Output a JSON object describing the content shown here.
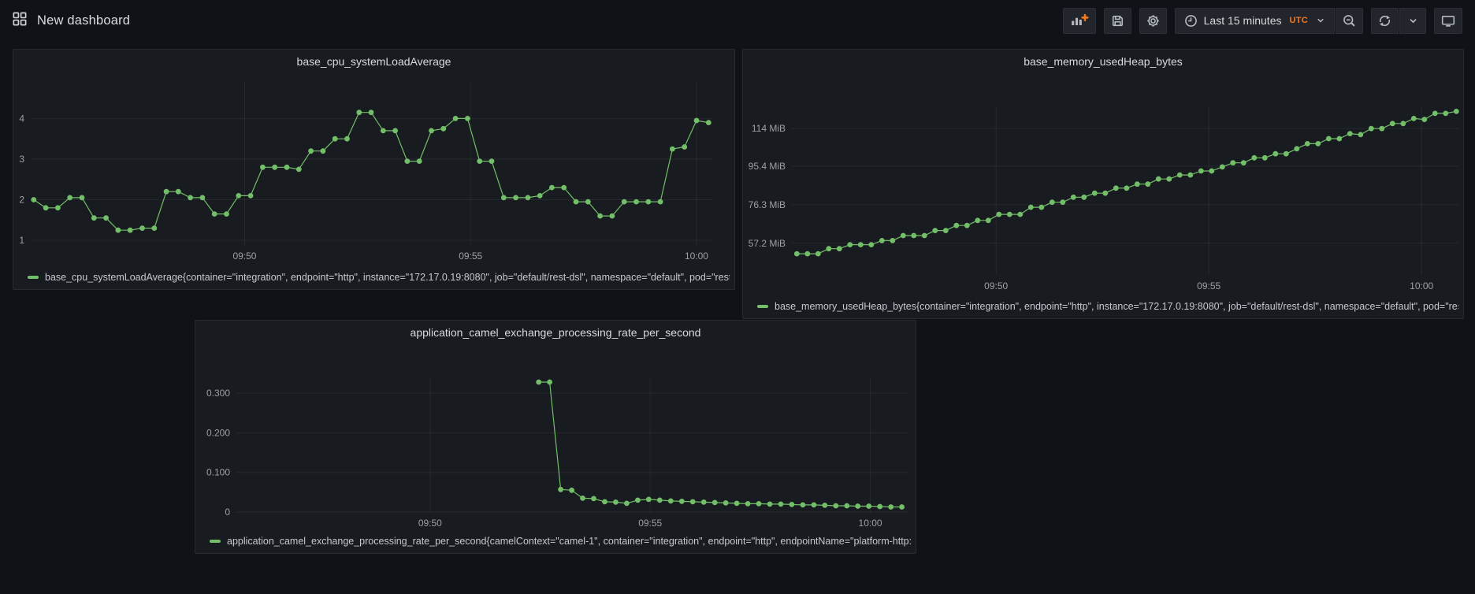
{
  "header": {
    "title": "New dashboard",
    "title_icon": "apps-grid-icon",
    "toolbar": {
      "add_panel": {
        "icon": "bar-chart-plus-icon"
      },
      "save": {
        "icon": "save-icon"
      },
      "settings": {
        "icon": "gear-icon"
      },
      "time_picker": {
        "icon": "clock-icon",
        "label": "Last 15 minutes",
        "timezone": "UTC",
        "caret_icon": "chevron-down-icon"
      },
      "zoom_out": {
        "icon": "magnifier-minus-icon"
      },
      "refresh": {
        "icon": "refresh-icon"
      },
      "refresh_interval": {
        "icon": "chevron-down-icon"
      },
      "cycle_view": {
        "icon": "monitor-icon"
      }
    }
  },
  "colors": {
    "series_green": "#73BF69",
    "accent_orange": "#F5791D",
    "panel_bg": "#181B1F",
    "page_bg": "#111217"
  },
  "chart_data": [
    {
      "type": "line",
      "title": "base_cpu_systemLoadAverage",
      "ylim": [
        0.885,
        4.92
      ],
      "y_ticks": [
        {
          "value": 1,
          "label": "1"
        },
        {
          "value": 2,
          "label": "2"
        },
        {
          "value": 3,
          "label": "3"
        },
        {
          "value": 4,
          "label": "4"
        }
      ],
      "time_domain": [
        "09:45:16",
        "10:00:22"
      ],
      "x_ticks": [
        {
          "time": "09:50:00",
          "label": "09:50"
        },
        {
          "time": "09:55:00",
          "label": "09:55"
        },
        {
          "time": "10:00:00",
          "label": "10:00"
        }
      ],
      "grid": true,
      "legend_position": "bottom",
      "series": [
        {
          "name": "base_cpu_systemLoadAverage{container=\"integration\", endpoint=\"http\", instance=\"172.17.0.19:8080\", job=\"default/rest-dsl\", namespace=\"default\", pod=\"rest-d",
          "color": "#73BF69",
          "start": "09:45:20",
          "interval_s": 16,
          "values": [
            2.0,
            1.8,
            1.8,
            2.05,
            2.05,
            1.55,
            1.55,
            1.25,
            1.25,
            1.3,
            1.3,
            2.2,
            2.2,
            2.05,
            2.05,
            1.65,
            1.65,
            2.1,
            2.1,
            2.8,
            2.8,
            2.8,
            2.75,
            3.2,
            3.2,
            3.5,
            3.5,
            4.15,
            4.15,
            3.7,
            3.7,
            2.95,
            2.95,
            3.7,
            3.75,
            4.0,
            4.0,
            2.95,
            2.95,
            2.05,
            2.05,
            2.05,
            2.1,
            2.3,
            2.3,
            1.95,
            1.95,
            1.6,
            1.6,
            1.95,
            1.95,
            1.95,
            1.95,
            3.25,
            3.3,
            3.95,
            3.9
          ]
        }
      ]
    },
    {
      "type": "line",
      "title": "base_memory_usedHeap_bytes",
      "unit": "MiB",
      "ylim": [
        41.5,
        124.6
      ],
      "y_ticks": [
        {
          "value": 57.2,
          "label": "57.2 MiB"
        },
        {
          "value": 76.3,
          "label": "76.3 MiB"
        },
        {
          "value": 95.4,
          "label": "95.4 MiB"
        },
        {
          "value": 114,
          "label": "114 MiB"
        }
      ],
      "time_domain": [
        "09:45:12",
        "10:00:52"
      ],
      "x_ticks": [
        {
          "time": "09:50:00",
          "label": "09:50"
        },
        {
          "time": "09:55:00",
          "label": "09:55"
        },
        {
          "time": "10:00:00",
          "label": "10:00"
        }
      ],
      "grid": true,
      "legend_position": "bottom",
      "series": [
        {
          "name": "base_memory_usedHeap_bytes{container=\"integration\", endpoint=\"http\", instance=\"172.17.0.19:8080\", job=\"default/rest-dsl\", namespace=\"default\", pod=\"rest-",
          "color": "#73BF69",
          "start": "09:45:19",
          "interval_s": 15,
          "values": [
            52,
            52,
            52,
            54.5,
            54.5,
            56.5,
            56.5,
            56.5,
            58.5,
            58.5,
            61,
            61,
            61,
            63.5,
            63.5,
            66,
            66,
            68.5,
            68.5,
            71.5,
            71.5,
            71.5,
            75,
            75,
            77.5,
            77.5,
            80,
            80,
            82,
            82,
            84.5,
            84.5,
            86.5,
            86.5,
            89,
            89,
            91,
            91,
            93,
            93,
            95,
            97,
            97,
            99.5,
            99.5,
            101.5,
            101.5,
            104,
            106.5,
            106.5,
            109,
            109,
            111.5,
            111,
            114,
            114,
            116.5,
            116.5,
            119,
            118.5,
            121.5,
            121.5,
            122.5
          ]
        }
      ]
    },
    {
      "type": "line",
      "title": "application_camel_exchange_processing_rate_per_second",
      "ylim": [
        0,
        0.34
      ],
      "y_ticks": [
        {
          "value": 0,
          "label": "0"
        },
        {
          "value": 0.1,
          "label": "0.100"
        },
        {
          "value": 0.2,
          "label": "0.200"
        },
        {
          "value": 0.3,
          "label": "0.300"
        }
      ],
      "time_domain": [
        "09:45:36",
        "10:00:52"
      ],
      "x_ticks": [
        {
          "time": "09:50:00",
          "label": "09:50"
        },
        {
          "time": "09:55:00",
          "label": "09:55"
        },
        {
          "time": "10:00:00",
          "label": "10:00"
        }
      ],
      "grid": true,
      "legend_position": "bottom",
      "series": [
        {
          "name": "application_camel_exchange_processing_rate_per_second{camelContext=\"camel-1\", container=\"integration\", endpoint=\"http\", endpointName=\"platform-http:///",
          "color": "#73BF69",
          "start": "09:52:28",
          "interval_s": 15,
          "values": [
            0.328,
            0.328,
            0.057,
            0.055,
            0.035,
            0.034,
            0.026,
            0.025,
            0.022,
            0.03,
            0.032,
            0.03,
            0.028,
            0.027,
            0.026,
            0.025,
            0.024,
            0.023,
            0.022,
            0.021,
            0.021,
            0.02,
            0.02,
            0.019,
            0.018,
            0.018,
            0.017,
            0.016,
            0.016,
            0.015,
            0.015,
            0.014,
            0.013,
            0.013
          ]
        }
      ]
    }
  ]
}
